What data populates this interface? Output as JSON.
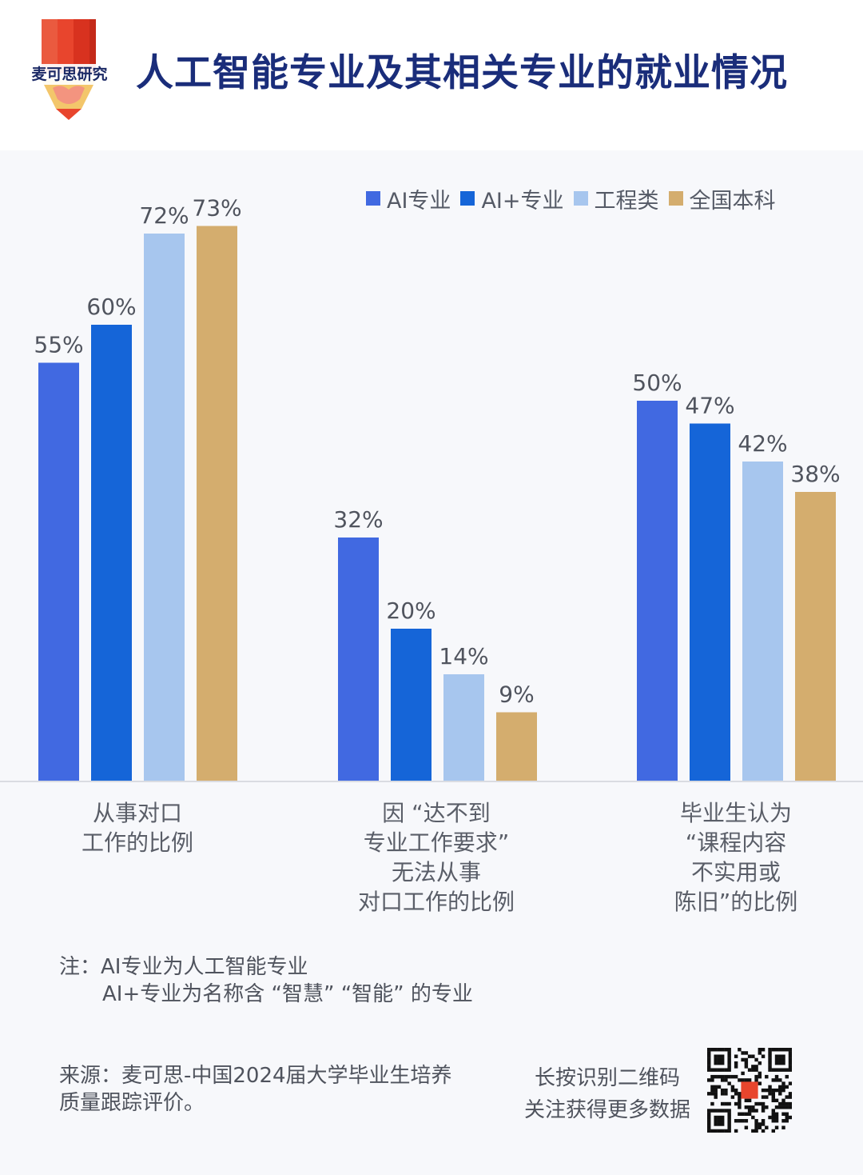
{
  "brand": {
    "name": "麦可思研究"
  },
  "title": "人工智能专业及其相关专业的就业情况",
  "colors": {
    "ai": "#4169e1",
    "ai_plus": "#1565d8",
    "engineering": "#a7c6ee",
    "national": "#d4ad6e",
    "title": "#1a2d7a",
    "logo_red": "#e8452d",
    "logo_yellow": "#f3c66b",
    "logo_pink": "#f28b82"
  },
  "legend": [
    "AI专业",
    "AI+专业",
    "工程类",
    "全国本科"
  ],
  "chart_data": {
    "type": "bar",
    "categories": [
      "从事对口\n工作的比例",
      "因 “达不到\n专业工作要求”\n无法从事\n对口工作的比例",
      "毕业生认为\n“课程内容\n不实用或\n陈旧”的比例"
    ],
    "series": [
      {
        "name": "AI专业",
        "values": [
          55,
          32,
          50
        ]
      },
      {
        "name": "AI+专业",
        "values": [
          60,
          20,
          47
        ]
      },
      {
        "name": "工程类",
        "values": [
          72,
          14,
          42
        ]
      },
      {
        "name": "全国本科",
        "values": [
          73,
          9,
          38
        ]
      }
    ],
    "unit": "%",
    "ylim": [
      0,
      100
    ],
    "grid": false,
    "legend_position": "top-right"
  },
  "note": {
    "line1": "注：AI专业为人工智能专业",
    "line2": "AI+专业为名称含 “智慧” “智能” 的专业"
  },
  "source": "来源：麦可思-中国2024届大学毕业生培养质量跟踪评价。",
  "qr": {
    "line1": "长按识别二维码",
    "line2": "关注获得更多数据"
  }
}
